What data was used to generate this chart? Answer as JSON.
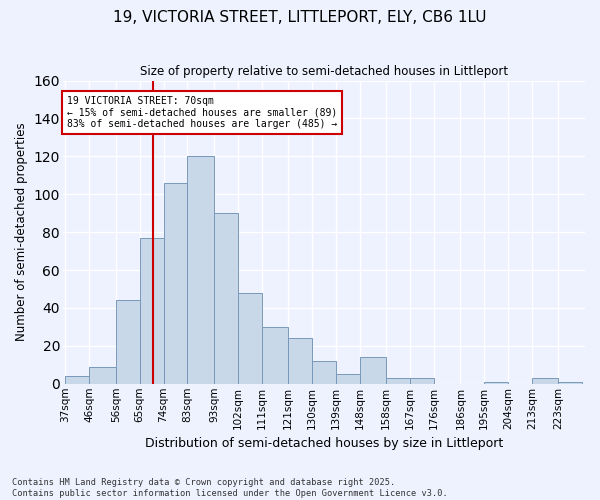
{
  "title": "19, VICTORIA STREET, LITTLEPORT, ELY, CB6 1LU",
  "subtitle": "Size of property relative to semi-detached houses in Littleport",
  "xlabel": "Distribution of semi-detached houses by size in Littleport",
  "ylabel": "Number of semi-detached properties",
  "categories": [
    "37sqm",
    "46sqm",
    "56sqm",
    "65sqm",
    "74sqm",
    "83sqm",
    "93sqm",
    "102sqm",
    "111sqm",
    "121sqm",
    "130sqm",
    "139sqm",
    "148sqm",
    "158sqm",
    "167sqm",
    "176sqm",
    "186sqm",
    "195sqm",
    "204sqm",
    "213sqm",
    "223sqm"
  ],
  "values": [
    4,
    9,
    44,
    77,
    106,
    120,
    90,
    48,
    30,
    24,
    12,
    5,
    14,
    3,
    3,
    0,
    0,
    1,
    0,
    3,
    1
  ],
  "bar_color": "#c8d8e8",
  "bar_edge_color": "#7799bb",
  "property_size": 70,
  "pct_smaller": 15,
  "count_smaller": 89,
  "pct_larger": 83,
  "count_larger": 485,
  "vline_color": "#cc0000",
  "annotation_box_color": "#cc0000",
  "background_color": "#eef2ff",
  "grid_color": "#ffffff",
  "ylim": [
    0,
    160
  ],
  "yticks": [
    0,
    20,
    40,
    60,
    80,
    100,
    120,
    140,
    160
  ],
  "footnote": "Contains HM Land Registry data © Crown copyright and database right 2025.\nContains public sector information licensed under the Open Government Licence v3.0.",
  "bin_edges": [
    37,
    46,
    56,
    65,
    74,
    83,
    93,
    102,
    111,
    121,
    130,
    139,
    148,
    158,
    167,
    176,
    186,
    195,
    204,
    213,
    223,
    232
  ]
}
